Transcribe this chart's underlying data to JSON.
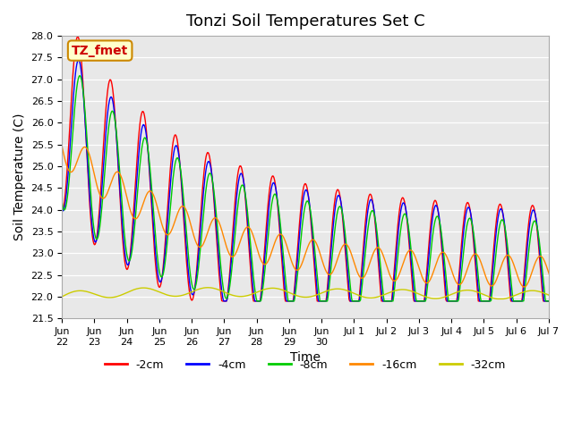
{
  "title": "Tonzi Soil Temperatures Set C",
  "xlabel": "Time",
  "ylabel": "Soil Temperature (C)",
  "ylim": [
    21.5,
    28.0
  ],
  "yticks": [
    21.5,
    22.0,
    22.5,
    23.0,
    23.5,
    24.0,
    24.5,
    25.0,
    25.5,
    26.0,
    26.5,
    27.0,
    27.5,
    28.0
  ],
  "xtick_labels": [
    "Jun\n22",
    "Jun\n23",
    "Jun\n24",
    "Jun\n25",
    "Jun\n26",
    "Jun\n27",
    "Jun\n28",
    "Jun\n29",
    "Jun\n30",
    "Jul 1",
    "Jul 2",
    "Jul 3",
    "Jul 4",
    "Jul 5",
    "Jul 6",
    "Jul 7"
  ],
  "series_colors": [
    "#ff0000",
    "#0000ff",
    "#00cc00",
    "#ff8800",
    "#cccc00"
  ],
  "series_labels": [
    "-2cm",
    "-4cm",
    "-8cm",
    "-16cm",
    "-32cm"
  ],
  "legend_label": "TZ_fmet",
  "legend_bg": "#ffffcc",
  "legend_border": "#cc8800",
  "bg_color": "#e8e8e8",
  "title_fontsize": 13,
  "axis_label_fontsize": 10,
  "tick_fontsize": 8,
  "legend_fontsize": 9
}
